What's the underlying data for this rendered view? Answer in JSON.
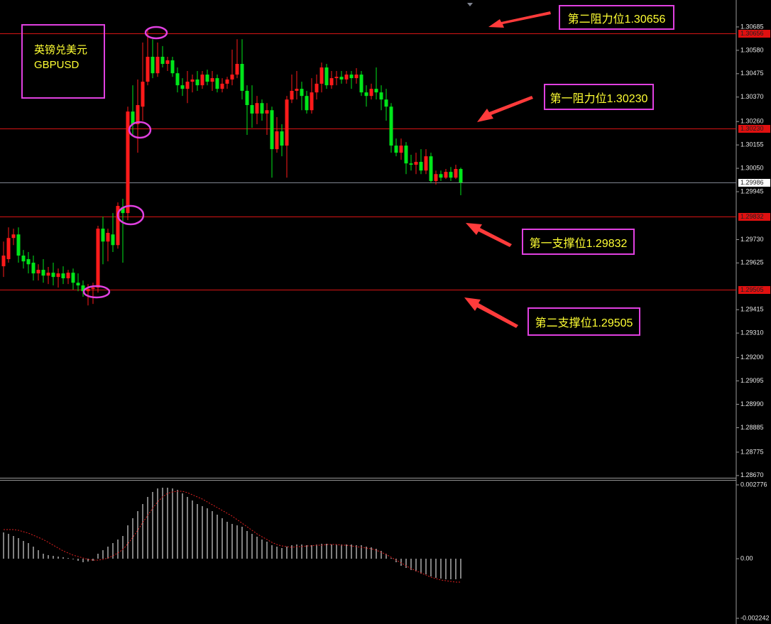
{
  "chart_data": [
    {
      "type": "candlestick",
      "symbol": [
        "英镑兑美元",
        "GBPUSD"
      ],
      "annotations": [
        "第二阻力位1.30656",
        "第一阻力位1.30230",
        "第一支撑位1.29832",
        "第二支撑位1.29505"
      ],
      "up_color": "#ff1a1a",
      "down_color": "#00e61a",
      "open": [
        1.2961,
        1.29642,
        1.29737,
        1.29753,
        1.29658,
        1.29642,
        1.29626,
        1.29578,
        1.29594,
        1.29568,
        1.29581,
        1.29562,
        1.29578,
        1.29556,
        1.29581,
        1.29536,
        1.29524,
        1.29498,
        1.29508,
        1.29514,
        1.29779,
        1.29721,
        1.29753,
        1.29705,
        1.29875,
        1.29849,
        1.30305,
        1.30248,
        1.30327,
        1.30439,
        1.30551,
        1.30477,
        1.30551,
        1.30519,
        1.30535,
        1.30477,
        1.30423,
        1.30407,
        1.30439,
        1.30449,
        1.30423,
        1.30471,
        1.30439,
        1.30455,
        1.30407,
        1.3043,
        1.30449,
        1.30471,
        1.30519,
        1.30398,
        1.30334,
        1.30296,
        1.30343,
        1.30296,
        1.30311,
        1.30136,
        1.30216,
        1.30152,
        1.30359,
        1.30398,
        1.30407,
        1.30375,
        1.30311,
        1.30391,
        1.3043,
        1.30503,
        1.30423,
        1.30455,
        1.30461,
        1.30449,
        1.30471,
        1.30455,
        1.30471,
        1.30391,
        1.30375,
        1.30407,
        1.30391,
        1.30359,
        1.30327,
        1.30152,
        1.3012,
        1.30152,
        1.30072,
        1.30066,
        1.30079,
        1.3004,
        1.30104,
        1.29993,
        1.30024,
        1.30008,
        1.30034,
        1.30008,
        1.30047
      ],
      "high": [
        1.29721,
        1.29785,
        1.29779,
        1.29785,
        1.29683,
        1.29674,
        1.29658,
        1.29619,
        1.29642,
        1.29607,
        1.29626,
        1.296,
        1.2961,
        1.29594,
        1.296,
        1.29578,
        1.29546,
        1.2953,
        1.29536,
        1.29792,
        1.29833,
        1.29779,
        1.29849,
        1.29897,
        1.29913,
        1.30327,
        1.30423,
        1.30449,
        1.30615,
        1.30678,
        1.3063,
        1.30615,
        1.30599,
        1.30551,
        1.30551,
        1.30503,
        1.30455,
        1.30487,
        1.30471,
        1.30487,
        1.30487,
        1.30493,
        1.30487,
        1.30471,
        1.30455,
        1.30461,
        1.30583,
        1.3063,
        1.3063,
        1.30423,
        1.30423,
        1.30375,
        1.30359,
        1.30343,
        1.30327,
        1.3028,
        1.30248,
        1.30375,
        1.30471,
        1.30487,
        1.30439,
        1.30398,
        1.30455,
        1.30471,
        1.30525,
        1.30519,
        1.30487,
        1.30487,
        1.30487,
        1.30487,
        1.30487,
        1.305,
        1.30487,
        1.30423,
        1.3043,
        1.30503,
        1.30423,
        1.30407,
        1.30343,
        1.30184,
        1.30184,
        1.30168,
        1.30111,
        1.3012,
        1.30136,
        1.30136,
        1.3012,
        1.3004,
        1.3004,
        1.30047,
        1.30056,
        1.30066,
        1.30053
      ],
      "low": [
        1.29562,
        1.29626,
        1.29705,
        1.29626,
        1.296,
        1.29578,
        1.29546,
        1.29546,
        1.29536,
        1.2953,
        1.29524,
        1.29514,
        1.2953,
        1.2953,
        1.29505,
        1.29498,
        1.29473,
        1.29434,
        1.29441,
        1.29492,
        1.29619,
        1.29632,
        1.29674,
        1.29689,
        1.29626,
        1.29817,
        1.302,
        1.3012,
        1.30264,
        1.30423,
        1.30455,
        1.30461,
        1.30503,
        1.30487,
        1.30461,
        1.30391,
        1.30375,
        1.30343,
        1.30391,
        1.30398,
        1.30407,
        1.30423,
        1.30398,
        1.30391,
        1.30391,
        1.30407,
        1.30423,
        1.30455,
        1.30359,
        1.302,
        1.30232,
        1.30248,
        1.30264,
        1.302,
        1.30008,
        1.3012,
        1.30104,
        1.30008,
        1.30343,
        1.30359,
        1.30311,
        1.30296,
        1.30296,
        1.30359,
        1.30391,
        1.30407,
        1.30407,
        1.30423,
        1.3043,
        1.3043,
        1.30407,
        1.3043,
        1.30375,
        1.30327,
        1.30359,
        1.30359,
        1.30311,
        1.30264,
        1.3012,
        1.30104,
        1.30088,
        1.30024,
        1.3004,
        1.30024,
        1.30024,
        1.30024,
        1.29983,
        1.29977,
        1.29993,
        1.30002,
        1.29993,
        1.30002,
        1.29929
      ],
      "close": [
        1.29658,
        1.29737,
        1.29753,
        1.29658,
        1.29632,
        1.29619,
        1.29578,
        1.29594,
        1.29568,
        1.29581,
        1.29562,
        1.29578,
        1.29556,
        1.29581,
        1.29536,
        1.29524,
        1.29498,
        1.29508,
        1.29514,
        1.29779,
        1.29721,
        1.2976,
        1.29705,
        1.29881,
        1.29849,
        1.30305,
        1.30248,
        1.30334,
        1.30439,
        1.30551,
        1.30477,
        1.30551,
        1.30519,
        1.30535,
        1.30477,
        1.30423,
        1.30407,
        1.30439,
        1.30449,
        1.30423,
        1.30471,
        1.30439,
        1.30455,
        1.30407,
        1.3043,
        1.30449,
        1.30471,
        1.30519,
        1.30398,
        1.30334,
        1.30296,
        1.30343,
        1.30296,
        1.30311,
        1.30136,
        1.30216,
        1.30152,
        1.30359,
        1.30398,
        1.30407,
        1.30375,
        1.30311,
        1.30391,
        1.3043,
        1.30503,
        1.30423,
        1.30455,
        1.30461,
        1.30449,
        1.30471,
        1.30455,
        1.30471,
        1.30391,
        1.30375,
        1.30407,
        1.30391,
        1.30359,
        1.30327,
        1.30152,
        1.3012,
        1.30152,
        1.30072,
        1.30066,
        1.30079,
        1.3004,
        1.30104,
        1.29993,
        1.30024,
        1.30008,
        1.30034,
        1.30008,
        1.30047,
        1.29986
      ],
      "ylim": [
        1.2866,
        1.30806
      ],
      "yticks": [
        1.30685,
        {
          "value": 1.3058,
          "label": "1.30580"
        },
        1.30475,
        {
          "value": 1.3037,
          "label": "1.30370"
        },
        {
          "value": 1.3026,
          "label": "1.30260"
        },
        1.30155,
        {
          "value": 1.3005,
          "label": "1.30050"
        },
        1.29945,
        {
          "value": 1.2973,
          "label": "1.29730"
        },
        1.29625,
        1.29415,
        {
          "value": 1.2931,
          "label": "1.29310"
        },
        {
          "value": 1.292,
          "label": "1.29200"
        },
        1.29095,
        {
          "value": 1.2899,
          "label": "1.28990"
        },
        1.28885,
        1.28775,
        {
          "value": 1.2867,
          "label": "1.28670"
        }
      ],
      "levels": [
        {
          "value": 1.30656,
          "color": "#d81414",
          "label_fill": "#e01010"
        },
        {
          "value": 1.3023,
          "label": "1.30230",
          "color": "#d81414",
          "label_fill": "#e01010"
        },
        {
          "value": 1.29986,
          "color": "#7f8490",
          "label_fill": "#ffffff"
        },
        {
          "value": 1.29832,
          "color": "#d81414",
          "label_fill": "#e01010"
        },
        {
          "value": 1.29505,
          "color": "#d81414",
          "label_fill": "#e01010"
        }
      ]
    },
    {
      "type": "macd",
      "histogram": {
        "color": "#ffffff",
        "values": [
          0.000988,
          0.000934,
          0.000854,
          0.000774,
          0.000667,
          0.000587,
          0.000454,
          0.00032,
          0.000187,
          0.000133,
          0.000107,
          8e-05,
          5.3e-05,
          2.7e-05,
          -2.7e-05,
          -8e-05,
          -0.000133,
          -0.000107,
          -8e-05,
          0.000187,
          0.00032,
          0.000454,
          0.000587,
          0.000721,
          0.000854,
          0.001255,
          0.001521,
          0.001788,
          0.002055,
          0.002322,
          0.002509,
          0.002643,
          0.002669,
          0.002669,
          0.002643,
          0.002589,
          0.002456,
          0.002322,
          0.002189,
          0.002055,
          0.001975,
          0.001895,
          0.001788,
          0.001655,
          0.001521,
          0.001388,
          0.001308,
          0.001255,
          0.001201,
          0.001041,
          0.000934,
          0.000827,
          0.000721,
          0.000641,
          0.000507,
          0.000454,
          0.0004,
          0.000454,
          0.000507,
          0.000534,
          0.000534,
          0.000507,
          0.000507,
          0.000534,
          0.000561,
          0.000561,
          0.000534,
          0.000534,
          0.000534,
          0.000534,
          0.000534,
          0.000507,
          0.000507,
          0.000454,
          0.000427,
          0.000374,
          0.000294,
          0.000187,
          2.7e-05,
          -0.000133,
          -0.000267,
          -0.000347,
          -0.000427,
          -0.00048,
          -0.000561,
          -0.000587,
          -0.000667,
          -0.000721,
          -0.000747,
          -0.000774,
          -0.000774,
          -0.000774,
          -0.000747
        ]
      },
      "signal": {
        "color": "#e02020",
        "values": [
          0.001094,
          0.001094,
          0.001094,
          0.001068,
          0.001014,
          0.000961,
          0.000881,
          0.000801,
          0.000721,
          0.000614,
          0.000507,
          0.0004,
          0.000294,
          0.000214,
          0.000133,
          8e-05,
          2.7e-05,
          -2.7e-05,
          -5.3e-05,
          -5.3e-05,
          -2.7e-05,
          2.7e-05,
          0.000107,
          0.000214,
          0.000347,
          0.000561,
          0.000801,
          0.001068,
          0.001361,
          0.001628,
          0.001895,
          0.002135,
          0.002322,
          0.002456,
          0.002509,
          0.002536,
          0.002536,
          0.002482,
          0.002402,
          0.002322,
          0.002242,
          0.002135,
          0.002029,
          0.001922,
          0.001815,
          0.001708,
          0.001601,
          0.001468,
          0.001335,
          0.001201,
          0.001068,
          0.000934,
          0.000827,
          0.000721,
          0.000614,
          0.000534,
          0.00048,
          0.000454,
          0.000427,
          0.000454,
          0.000454,
          0.00048,
          0.00048,
          0.000507,
          0.000507,
          0.000534,
          0.000534,
          0.000534,
          0.000507,
          0.000507,
          0.00048,
          0.000454,
          0.000427,
          0.0004,
          0.000374,
          0.00032,
          0.00024,
          0.00016,
          5.3e-05,
          -5.3e-05,
          -0.00016,
          -0.000267,
          -0.000374,
          -0.000454,
          -0.000534,
          -0.000614,
          -0.000694,
          -0.000747,
          -0.000801,
          -0.000828,
          -0.000854,
          -0.000881,
          -0.000881
        ]
      },
      "ylim": [
        -0.002402,
        0.002963
      ],
      "yticks": [
        0.002776,
        {
          "value": 0,
          "label": "0.00"
        },
        -0.002242
      ]
    }
  ]
}
